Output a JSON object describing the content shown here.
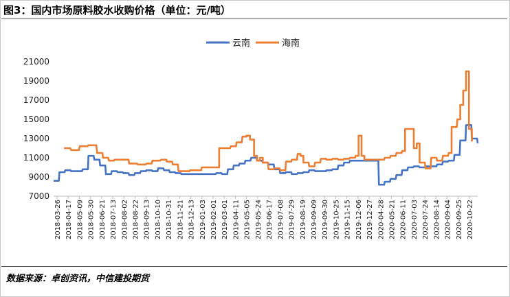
{
  "figure": {
    "title": "图3：国内市场原料胶水收购价格（单位：元/吨）",
    "source": "数据来源：卓创资讯，中信建投期货"
  },
  "chart_data": {
    "type": "line",
    "title": "",
    "xlabel": "",
    "ylabel": "",
    "ylim": [
      7000,
      21000
    ],
    "yticks": [
      7000,
      9000,
      11000,
      13000,
      15000,
      17000,
      19000,
      21000
    ],
    "xticks": [
      "2018-03-26",
      "2018-04-17",
      "2018-05-09",
      "2018-05-30",
      "2018-06-21",
      "2018-07-13",
      "2018-08-02",
      "2018-08-22",
      "2018-09-13",
      "2018-10-10",
      "2018-10-31",
      "2018-11-21",
      "2018-12-13",
      "2019-01-03",
      "2019-02-01",
      "2019-03-01",
      "2019-04-11",
      "2019-05-05",
      "2019-05-24",
      "2019-06-17",
      "2019-07-08",
      "2019-07-29",
      "2019-08-19",
      "2019-09-09",
      "2019-09-30",
      "2019-10-25",
      "2019-11-15",
      "2019-12-06",
      "2019-12-27",
      "2020-04-28",
      "2020-05-21",
      "2020-06-11",
      "2020-07-03",
      "2020-07-24",
      "2020-08-14",
      "2020-09-04",
      "2020-09-25",
      "2020-10-22"
    ],
    "legend_position": "top-center",
    "grid": false,
    "series": [
      {
        "name": "云南",
        "color": "#4472C4",
        "points": [
          [
            0,
            8600
          ],
          [
            1,
            9500
          ],
          [
            2,
            9700
          ],
          [
            3,
            9600
          ],
          [
            4,
            9600
          ],
          [
            5,
            9800
          ],
          [
            6,
            11200
          ],
          [
            7,
            10800
          ],
          [
            8,
            10200
          ],
          [
            9,
            9300
          ],
          [
            10,
            9600
          ],
          [
            11,
            9500
          ],
          [
            12,
            9400
          ],
          [
            13,
            9200
          ],
          [
            14,
            9400
          ],
          [
            15,
            9600
          ],
          [
            16,
            9700
          ],
          [
            17,
            9600
          ],
          [
            18,
            9900
          ],
          [
            19,
            9700
          ],
          [
            20,
            9500
          ],
          [
            21,
            9400
          ],
          [
            22,
            9300
          ],
          [
            23,
            9300
          ],
          [
            24,
            9300
          ],
          [
            25,
            9300
          ],
          [
            26,
            9300
          ],
          [
            27,
            9300
          ],
          [
            28,
            9400
          ],
          [
            29,
            9300
          ],
          [
            30,
            9800
          ],
          [
            31,
            10200
          ],
          [
            32,
            10400
          ],
          [
            33,
            10700
          ],
          [
            34,
            11000
          ],
          [
            35,
            10700
          ],
          [
            36,
            10500
          ],
          [
            37,
            10300
          ],
          [
            38,
            9800
          ],
          [
            39,
            9400
          ],
          [
            40,
            9500
          ],
          [
            41,
            9300
          ],
          [
            42,
            9400
          ],
          [
            43,
            9500
          ],
          [
            44,
            9700
          ],
          [
            45,
            9600
          ],
          [
            46,
            9600
          ],
          [
            47,
            9700
          ],
          [
            48,
            9800
          ],
          [
            49,
            10200
          ],
          [
            50,
            10500
          ],
          [
            51,
            10700
          ],
          [
            52,
            10700
          ],
          [
            53,
            10700
          ],
          [
            54,
            10700
          ],
          [
            55,
            10700
          ],
          [
            56,
            8200
          ],
          [
            57,
            8500
          ],
          [
            58,
            8800
          ],
          [
            59,
            9200
          ],
          [
            60,
            9700
          ],
          [
            61,
            10000
          ],
          [
            62,
            10100
          ],
          [
            63,
            10000
          ],
          [
            64,
            10100
          ],
          [
            65,
            10100
          ],
          [
            66,
            10300
          ],
          [
            67,
            10600
          ],
          [
            68,
            10700
          ],
          [
            69,
            11300
          ],
          [
            70,
            12800
          ],
          [
            71,
            14400
          ],
          [
            72,
            13000
          ],
          [
            73,
            12500
          ]
        ]
      },
      {
        "name": "海南",
        "color": "#ED7D31",
        "points": [
          [
            1.8,
            12000
          ],
          [
            3,
            11800
          ],
          [
            4.5,
            12200
          ],
          [
            6,
            12300
          ],
          [
            7.5,
            11500
          ],
          [
            8.5,
            11000
          ],
          [
            9.5,
            10700
          ],
          [
            10.5,
            10800
          ],
          [
            12,
            10800
          ],
          [
            13,
            10400
          ],
          [
            14.5,
            10300
          ],
          [
            16,
            10400
          ],
          [
            17,
            10700
          ],
          [
            18.5,
            10800
          ],
          [
            19.5,
            10600
          ],
          [
            20.5,
            10300
          ],
          [
            21.5,
            9600
          ],
          [
            22.5,
            9600
          ],
          [
            23.5,
            9700
          ],
          [
            24.5,
            9700
          ],
          [
            25.5,
            10000
          ],
          [
            26.5,
            10000
          ],
          [
            27.5,
            10000
          ],
          [
            28.3,
            10000
          ],
          [
            28.5,
            12000
          ],
          [
            29.5,
            12000
          ],
          [
            30.5,
            12200
          ],
          [
            31.5,
            12600
          ],
          [
            32.5,
            13200
          ],
          [
            33.2,
            13300
          ],
          [
            33.8,
            12900
          ],
          [
            34.5,
            11200
          ],
          [
            35,
            10700
          ],
          [
            35.5,
            11000
          ],
          [
            36,
            10500
          ],
          [
            37,
            9800
          ],
          [
            38,
            9900
          ],
          [
            39,
            9700
          ],
          [
            40,
            10600
          ],
          [
            41,
            10800
          ],
          [
            42,
            11400
          ],
          [
            42.5,
            11200
          ],
          [
            43,
            10500
          ],
          [
            44,
            10100
          ],
          [
            45,
            10500
          ],
          [
            46,
            10900
          ],
          [
            47,
            10800
          ],
          [
            48,
            10900
          ],
          [
            49,
            10800
          ],
          [
            50,
            10900
          ],
          [
            51,
            11000
          ],
          [
            52,
            11200
          ],
          [
            52.5,
            13300
          ],
          [
            53,
            11200
          ],
          [
            53.5,
            10800
          ],
          [
            55,
            10800
          ],
          [
            56,
            10800
          ],
          [
            57,
            11000
          ],
          [
            58,
            11200
          ],
          [
            59,
            11500
          ],
          [
            60,
            11700
          ],
          [
            60.5,
            14000
          ],
          [
            61.5,
            14000
          ],
          [
            62,
            12000
          ],
          [
            62.5,
            12500
          ],
          [
            63,
            10500
          ],
          [
            64,
            9900
          ],
          [
            65,
            11000
          ],
          [
            66,
            10700
          ],
          [
            67,
            11200
          ],
          [
            68,
            11500
          ],
          [
            68.5,
            14200
          ],
          [
            69.5,
            15000
          ],
          [
            70,
            16500
          ],
          [
            70.5,
            18000
          ],
          [
            71,
            20000
          ],
          [
            71.5,
            14000
          ],
          [
            72,
            12700
          ]
        ]
      }
    ]
  }
}
